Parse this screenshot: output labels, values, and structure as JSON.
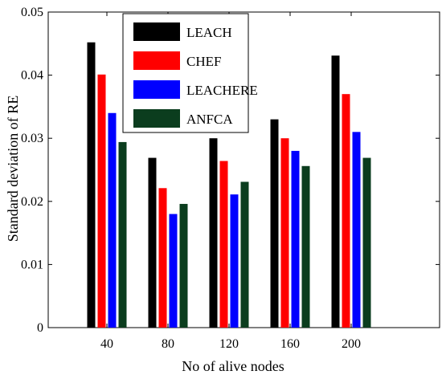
{
  "chart_data": {
    "type": "bar",
    "title": "",
    "xlabel": "No of alive nodes",
    "ylabel": "Standard deviation of RE",
    "categories": [
      "40",
      "80",
      "120",
      "160",
      "200"
    ],
    "ylim": [
      0,
      0.05
    ],
    "yticks": [
      0,
      0.01,
      0.02,
      0.03,
      0.04,
      0.05
    ],
    "ytick_labels": [
      "0",
      "0.01",
      "0.02",
      "0.03",
      "0.04",
      "0.05"
    ],
    "grid": false,
    "legend_position": "top-center",
    "series": [
      {
        "name": "LEACH",
        "color": "#000000",
        "values": [
          0.0452,
          0.0269,
          0.03,
          0.033,
          0.0431
        ]
      },
      {
        "name": "CHEF",
        "color": "#ff0000",
        "values": [
          0.0401,
          0.0221,
          0.0264,
          0.03,
          0.037
        ]
      },
      {
        "name": "LEACHERE",
        "color": "#0000ff",
        "values": [
          0.034,
          0.018,
          0.0211,
          0.028,
          0.031
        ]
      },
      {
        "name": "ANFCA",
        "color": "#0b3d1e",
        "values": [
          0.0294,
          0.0196,
          0.0231,
          0.0256,
          0.0269
        ]
      }
    ]
  }
}
